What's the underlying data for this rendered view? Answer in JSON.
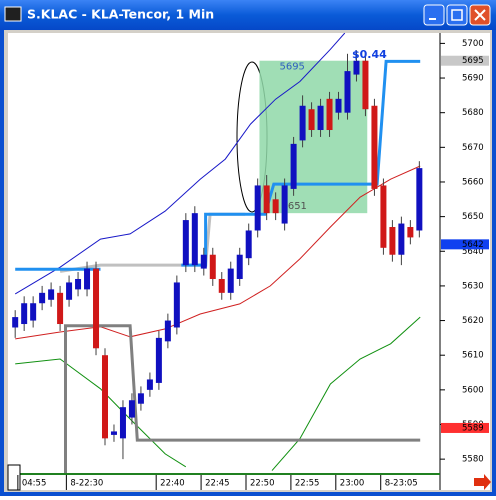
{
  "window": {
    "title": "S.KLAC - KLA-Tencor, 1 Min"
  },
  "chart_data": {
    "type": "candlestick",
    "xlim": [
      -0.8,
      47.3
    ],
    "ylim": [
      5576,
      5703
    ],
    "yticks": [
      5700,
      5690,
      5680,
      5670,
      5660,
      5650,
      5640,
      5630,
      5620,
      5610,
      5600,
      5590,
      5580
    ],
    "xticks": [
      {
        "value": 0.8,
        "label": "04:55"
      },
      {
        "value": 6.2,
        "label": "8-22:30"
      },
      {
        "value": 16.2,
        "label": "22:40"
      },
      {
        "value": 21.2,
        "label": "22:45"
      },
      {
        "value": 26.2,
        "label": "22:50"
      },
      {
        "value": 31.2,
        "label": "22:55"
      },
      {
        "value": 36.2,
        "label": "23:00"
      },
      {
        "value": 41.2,
        "label": "8-23:05"
      }
    ],
    "up_color": "#1010c0",
    "down_color": "#d01818",
    "open": [
      5618,
      5619,
      5620,
      5625,
      5626,
      5628,
      5626,
      5629,
      5629,
      5635,
      5610,
      5587,
      5586,
      5592,
      5596,
      5600,
      5602,
      5614,
      5618,
      5636,
      5636,
      5635,
      5639,
      5632,
      5628,
      5632,
      5638,
      5646,
      5659,
      5655,
      5648,
      5658,
      5672,
      5681,
      5675,
      5684,
      5680,
      5680,
      5691,
      5695,
      5682,
      5659,
      5647,
      5639,
      5647,
      5646
    ],
    "high": [
      5623,
      5627,
      5627,
      5630,
      5631,
      5630,
      5633,
      5634,
      5637,
      5637,
      5612,
      5590,
      5597,
      5599,
      5601,
      5605,
      5617,
      5622,
      5633,
      5651,
      5653,
      5641,
      5641,
      5634,
      5637,
      5641,
      5648,
      5661,
      5662,
      5657,
      5661,
      5673,
      5685,
      5683,
      5684,
      5686,
      5686,
      5697,
      5698,
      5697,
      5684,
      5661,
      5649,
      5650,
      5649,
      5666
    ],
    "low": [
      5615,
      5617,
      5618,
      5623,
      5624,
      5617,
      5624,
      5627,
      5627,
      5610,
      5584,
      5585,
      5580,
      5590,
      5594,
      5598,
      5600,
      5612,
      5616,
      5634,
      5634,
      5633,
      5630,
      5626,
      5626,
      5630,
      5636,
      5644,
      5649,
      5649,
      5646,
      5656,
      5670,
      5673,
      5673,
      5673,
      5678,
      5678,
      5689,
      5679,
      5656,
      5639,
      5637,
      5636,
      5642,
      5644
    ],
    "close": [
      5621,
      5625,
      5625,
      5628,
      5629,
      5619,
      5631,
      5632,
      5635,
      5612,
      5586,
      5588,
      5595,
      5597,
      5599,
      5603,
      5615,
      5620,
      5631,
      5649,
      5651,
      5639,
      5632,
      5628,
      5635,
      5639,
      5646,
      5659,
      5651,
      5651,
      5659,
      5671,
      5682,
      5675,
      5682,
      5675,
      5684,
      5692,
      5695,
      5681,
      5658,
      5641,
      5639,
      5648,
      5644,
      5664
    ],
    "overlays": [
      {
        "color": "#1818c8",
        "width": 1,
        "x": [
          0,
          5,
          9.5,
          12.8,
          16.7,
          20.6,
          23.4,
          26.2,
          29,
          31.7,
          35.1,
          36.7
        ],
        "values": [
          5627.7,
          5635.4,
          5643.5,
          5645,
          5651.6,
          5660.8,
          5666.6,
          5676.7,
          5683.9,
          5689,
          5698.3,
          5703
        ]
      },
      {
        "color": "#d02020",
        "width": 1,
        "x": [
          0,
          5,
          9.5,
          12.8,
          16.7,
          20.6,
          25,
          28.4,
          31.7,
          35.1,
          38.4,
          41.8,
          45.1
        ],
        "values": [
          5614.7,
          5616.7,
          5618.2,
          5615.3,
          5617.6,
          5621.9,
          5624.8,
          5630,
          5637.8,
          5647,
          5655.6,
          5660.8,
          5664.6
        ]
      },
      {
        "color": "#109010",
        "width": 1,
        "x": [
          0,
          5,
          9.5,
          12.8,
          16.7,
          19,
          20,
          28.6,
          31.7,
          35.1,
          38.4,
          41.8,
          45.1
        ],
        "values": [
          5607.5,
          5608.9,
          5600.3,
          5591.6,
          5581.5,
          5577.8,
          null,
          5576.7,
          5585.9,
          5601.7,
          5608.9,
          5613.3,
          5621
        ]
      },
      {
        "color": "#808080",
        "width": 3,
        "x": [
          5.6,
          5.6,
          12.8,
          13.6,
          45.1
        ],
        "values": [
          5576,
          5618.5,
          5618.5,
          5585.5,
          5585.5
        ]
      },
      {
        "color": "#c0c0c0",
        "width": 3,
        "x": [
          5,
          9.5,
          21.2,
          21.7,
          25.6
        ],
        "values": [
          5634.2,
          5636,
          5636,
          5650.7,
          5650.7
        ]
      },
      {
        "color": "#2090f0",
        "width": 3,
        "x": [
          0,
          9.5,
          10,
          18.5,
          21.2,
          21.2,
          27.8,
          28.8,
          40.3,
          41.3,
          45.1
        ],
        "values": [
          5634.8,
          5634.8,
          null,
          5636,
          5636,
          5650.7,
          5650.7,
          5659.4,
          5659.4,
          5694.8,
          5694.8
        ]
      }
    ],
    "zone": {
      "start": 27.2,
      "end": 39.2,
      "top": 5695,
      "bottom": 5651,
      "color": "#8fd8a8"
    },
    "annotation": "$0.44",
    "price_markers": [
      {
        "value": 5695,
        "color": "#c8c8c8"
      },
      {
        "value": 5642,
        "color": "#1040f0"
      },
      {
        "value": 5589,
        "color": "#ff3030"
      }
    ]
  }
}
